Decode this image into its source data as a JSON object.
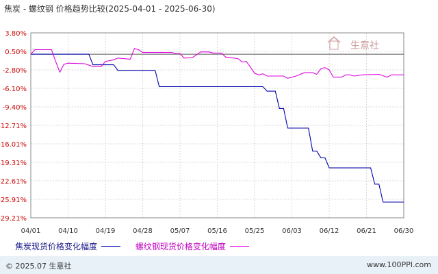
{
  "title": "焦炭 - 螺纹钢 价格趋势比较(2025-04-01 - 2025-06-30)",
  "watermark": "生意社",
  "footer": {
    "left": "© 2025.07 生意社",
    "right": "www.100PPI.com"
  },
  "chart_data": {
    "type": "line",
    "title": "焦炭 - 螺纹钢 价格趋势比较(2025-04-01 - 2025-06-30)",
    "y_ticks": [
      "3.80%",
      "0.50%",
      "-2.80%",
      "-6.10%",
      "-9.40%",
      "-12.71%",
      "-16.01%",
      "-19.31%",
      "-22.61%",
      "-25.91%",
      "-29.21%"
    ],
    "ylim": [
      -29.21,
      3.8
    ],
    "x_ticks": [
      "04/01",
      "04/10",
      "04/19",
      "04/28",
      "05/07",
      "05/16",
      "05/25",
      "06/03",
      "06/12",
      "06/21",
      "06/30"
    ],
    "xlim": [
      0,
      90
    ],
    "grid": true,
    "legend_position": "bottom",
    "series": [
      {
        "name": "焦炭现货价格变化幅度",
        "color": "#0000aa",
        "points": [
          [
            0,
            0
          ],
          [
            14,
            0
          ],
          [
            15,
            -1.9
          ],
          [
            20,
            -1.9
          ],
          [
            21,
            -2.9
          ],
          [
            30,
            -2.9
          ],
          [
            31,
            -5.8
          ],
          [
            56,
            -5.8
          ],
          [
            57,
            -6.6
          ],
          [
            59,
            -6.6
          ],
          [
            60,
            -9.7
          ],
          [
            61,
            -9.7
          ],
          [
            62,
            -13.2
          ],
          [
            67,
            -13.2
          ],
          [
            68,
            -17.3
          ],
          [
            69,
            -17.3
          ],
          [
            70,
            -18.5
          ],
          [
            71,
            -18.5
          ],
          [
            72,
            -20.3
          ],
          [
            82,
            -20.3
          ],
          [
            83,
            -23.2
          ],
          [
            84,
            -23.2
          ],
          [
            85,
            -26.4
          ],
          [
            90,
            -26.4
          ]
        ]
      },
      {
        "name": "螺纹钢现货价格变化幅度",
        "color": "#dd00dd",
        "points": [
          [
            0,
            0
          ],
          [
            1,
            0.8
          ],
          [
            5,
            0.8
          ],
          [
            6,
            -1.3
          ],
          [
            7,
            -3.2
          ],
          [
            8,
            -1.8
          ],
          [
            9,
            -1.6
          ],
          [
            13,
            -1.7
          ],
          [
            15,
            -2.2
          ],
          [
            17,
            -2.2
          ],
          [
            18,
            -1.3
          ],
          [
            20,
            -1.0
          ],
          [
            21,
            -0.7
          ],
          [
            24,
            -0.9
          ],
          [
            25,
            1.0
          ],
          [
            26,
            0.8
          ],
          [
            27,
            0.3
          ],
          [
            34,
            0.3
          ],
          [
            35,
            0.1
          ],
          [
            36,
            0.1
          ],
          [
            37,
            -0.7
          ],
          [
            39,
            -0.6
          ],
          [
            40,
            -0.1
          ],
          [
            41,
            0.4
          ],
          [
            43,
            0.4
          ],
          [
            44,
            0.2
          ],
          [
            46,
            0.2
          ],
          [
            47,
            -0.5
          ],
          [
            50,
            -0.8
          ],
          [
            51,
            -1.4
          ],
          [
            52,
            -1.3
          ],
          [
            53,
            -2.3
          ],
          [
            54,
            -3.4
          ],
          [
            55,
            -3.7
          ],
          [
            56,
            -3.5
          ],
          [
            57,
            -3.9
          ],
          [
            61,
            -3.9
          ],
          [
            62,
            -4.3
          ],
          [
            64,
            -3.9
          ],
          [
            66,
            -3.3
          ],
          [
            68,
            -3.3
          ],
          [
            69,
            -3.6
          ],
          [
            70,
            -2.6
          ],
          [
            71,
            -2.4
          ],
          [
            72,
            -2.8
          ],
          [
            73,
            -4.1
          ],
          [
            75,
            -4.1
          ],
          [
            76,
            -3.7
          ],
          [
            77,
            -3.7
          ],
          [
            78,
            -3.9
          ],
          [
            80,
            -3.7
          ],
          [
            84,
            -3.6
          ],
          [
            86,
            -4.1
          ],
          [
            87,
            -3.7
          ],
          [
            90,
            -3.7
          ]
        ]
      }
    ]
  }
}
